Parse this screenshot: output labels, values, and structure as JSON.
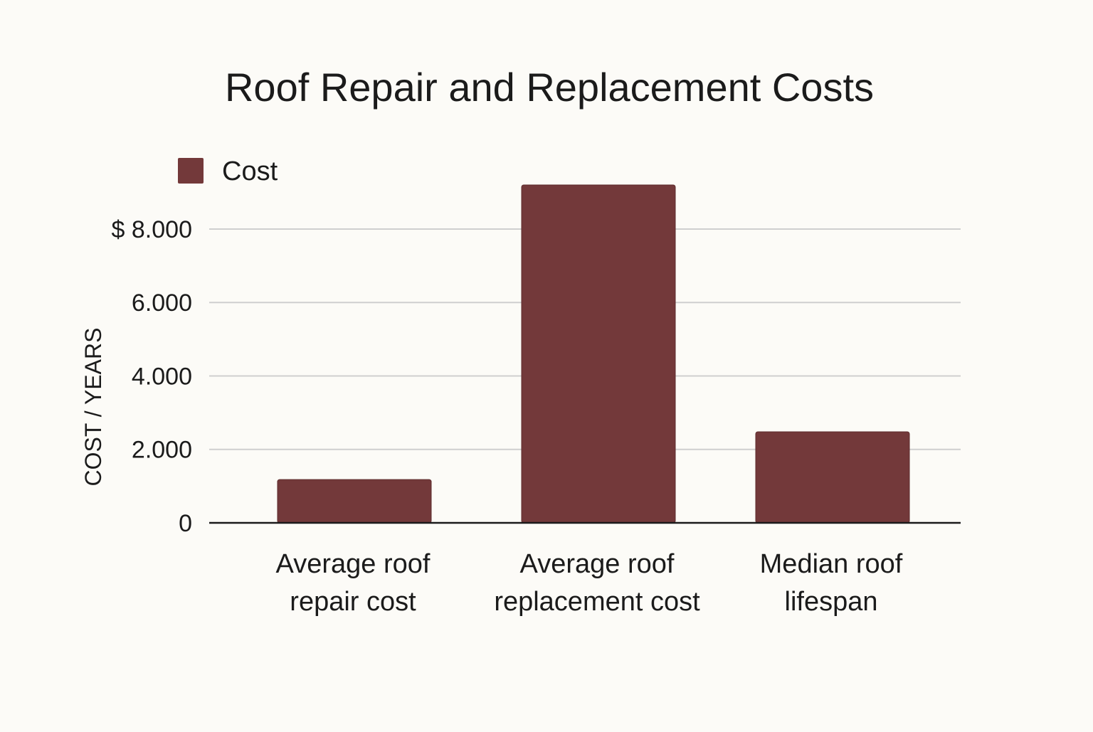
{
  "chart_data": {
    "type": "bar",
    "title": "Roof Repair and Replacement Costs",
    "ylabel": "COST / YEARS",
    "xlabel": "",
    "legend": {
      "label": "Cost",
      "placement": "top-left"
    },
    "series": [
      {
        "name": "Cost",
        "values": [
          1180,
          9200,
          2480
        ]
      }
    ],
    "categories": [
      [
        "Average roof",
        "repair cost"
      ],
      [
        "Average roof",
        "replacement cost"
      ],
      [
        "Median roof",
        "lifespan"
      ]
    ],
    "ylim": [
      0,
      9200
    ],
    "yticks": [
      0,
      2000,
      4000,
      6000,
      8000
    ],
    "ytick_labels": [
      "0",
      "2.000",
      "4.000",
      "6.000",
      "$ 8.000"
    ],
    "grid": true
  },
  "colors": {
    "bar": "#73393a",
    "bar_edge": "#5e2c2d",
    "grid": "#cfcfcf",
    "axis": "#1b1b1b"
  }
}
